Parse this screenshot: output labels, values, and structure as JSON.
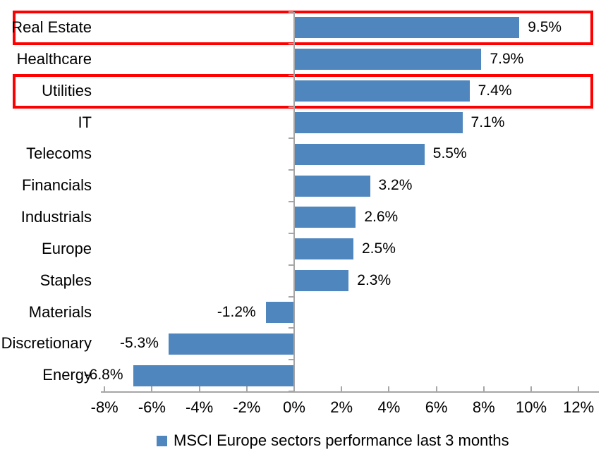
{
  "chart_data": {
    "type": "bar",
    "orientation": "horizontal",
    "title": "",
    "legend": "MSCI Europe sectors performance last 3 months",
    "legend_position": "bottom",
    "categories": [
      "Real Estate",
      "Healthcare",
      "Utilities",
      "IT",
      "Telecoms",
      "Financials",
      "Industrials",
      "Europe",
      "Staples",
      "Materials",
      "Discretionary",
      "Energy"
    ],
    "values": [
      9.5,
      7.9,
      7.4,
      7.1,
      5.5,
      3.2,
      2.6,
      2.5,
      2.3,
      -1.2,
      -5.3,
      -6.8
    ],
    "value_labels": [
      "9.5%",
      "7.9%",
      "7.4%",
      "7.1%",
      "5.5%",
      "3.2%",
      "2.6%",
      "2.5%",
      "2.3%",
      "-1.2%",
      "-5.3%",
      "-6.8%"
    ],
    "xlabel": "",
    "ylabel": "",
    "xlim": [
      -8.15,
      12.85
    ],
    "x_tick_values": [
      -8,
      -6,
      -4,
      -2,
      0,
      2,
      4,
      6,
      8,
      10,
      12
    ],
    "x_tick_labels": [
      "-8%",
      "-6%",
      "-4%",
      "-2%",
      "0%",
      "2%",
      "4%",
      "6%",
      "8%",
      "10%",
      "12%"
    ],
    "grid": false,
    "bar_color": "#4F86BD",
    "axis_color": "#A6A6A6",
    "text_color": "#000000",
    "highlight_color": "#FF0000",
    "highlighted_categories": [
      "Real Estate",
      "Utilities"
    ]
  }
}
